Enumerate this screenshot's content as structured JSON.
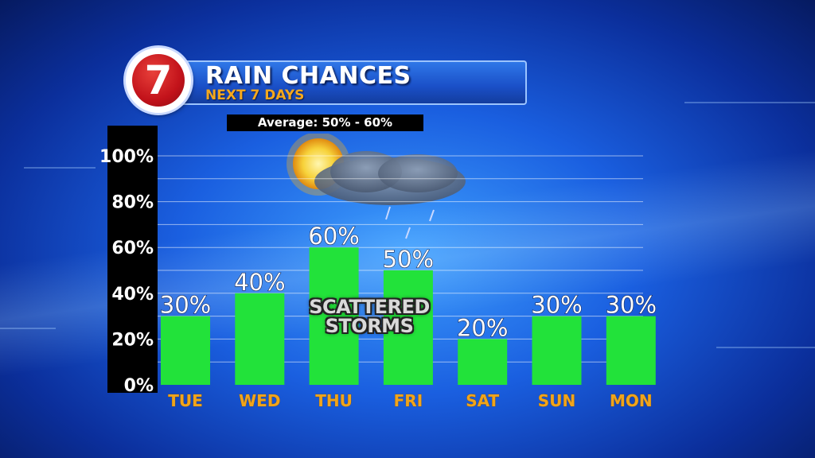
{
  "title": "RAIN CHANCES",
  "subtitle": "NEXT 7 DAYS",
  "average": "Average: 50% - 60%",
  "logo": {
    "text": "7",
    "icon": "channel-7-logo"
  },
  "weather_icon": "sun-cloud-rain-icon",
  "annotation_line1": "SCATTERED",
  "annotation_line2": "STORMS",
  "colors": {
    "bar": "#22e23a",
    "category": "#f0a41c",
    "background": "#1a5fe0",
    "grid": "#ffffff"
  },
  "chart_data": {
    "type": "bar",
    "title": "RAIN CHANCES",
    "subtitle": "NEXT 7 DAYS",
    "categories": [
      "TUE",
      "WED",
      "THU",
      "FRI",
      "SAT",
      "SUN",
      "MON"
    ],
    "values": [
      30,
      40,
      60,
      50,
      20,
      30,
      30
    ],
    "value_labels": [
      "30%",
      "40%",
      "60%",
      "50%",
      "20%",
      "30%",
      "30%"
    ],
    "ylim": [
      0,
      100
    ],
    "yticks": [
      0,
      20,
      40,
      60,
      80,
      100
    ],
    "ytick_labels": [
      "0%",
      "20%",
      "40%",
      "60%",
      "80%",
      "100%"
    ],
    "grid": true,
    "legend": "none"
  }
}
